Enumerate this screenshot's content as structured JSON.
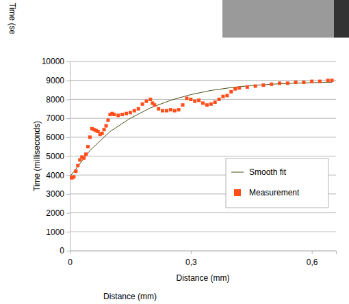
{
  "chart_data": {
    "type": "line",
    "x_label": "Distance (mm)",
    "y_label": "Time (milliseconds)",
    "xlim": [
      0,
      0.66
    ],
    "xticks": [
      0,
      {
        "value": 0.3,
        "label": "0,3"
      },
      {
        "value": 0.6,
        "label": "0,6"
      }
    ],
    "ylim": [
      0,
      10000
    ],
    "yticks": [
      0,
      1000,
      2000,
      3000,
      4000,
      5000,
      6000,
      7000,
      8000,
      9000,
      10000
    ],
    "grid": true,
    "legend": "right",
    "annotations": [
      {
        "text": "Time (se"
      },
      {
        "text": "Distance (mm)"
      }
    ],
    "series": [
      {
        "name": "Smooth fit",
        "type": "line",
        "color": "#4a4a14",
        "line_style": "solid",
        "x": [
          0,
          0.05,
          0.1,
          0.15,
          0.2,
          0.25,
          0.3,
          0.35,
          0.4,
          0.45,
          0.5,
          0.55,
          0.6,
          0.65
        ],
        "values": [
          3900,
          5300,
          6300,
          7000,
          7550,
          7950,
          8250,
          8470,
          8620,
          8730,
          8800,
          8850,
          8880,
          8900
        ]
      },
      {
        "name": "Measurement",
        "type": "scatter",
        "color": "#ff4d1a",
        "marker": "square",
        "x": [
          0,
          0.005,
          0.01,
          0.015,
          0.02,
          0.025,
          0.03,
          0.035,
          0.04,
          0.045,
          0.05,
          0.055,
          0.06,
          0.065,
          0.07,
          0.075,
          0.08,
          0.085,
          0.09,
          0.095,
          0.1,
          0.105,
          0.11,
          0.12,
          0.13,
          0.14,
          0.15,
          0.16,
          0.17,
          0.18,
          0.19,
          0.2,
          0.205,
          0.21,
          0.22,
          0.23,
          0.24,
          0.25,
          0.26,
          0.27,
          0.28,
          0.29,
          0.3,
          0.31,
          0.32,
          0.33,
          0.34,
          0.35,
          0.36,
          0.37,
          0.38,
          0.39,
          0.4,
          0.41,
          0.42,
          0.44,
          0.46,
          0.48,
          0.5,
          0.52,
          0.54,
          0.56,
          0.58,
          0.6,
          0.62,
          0.64,
          0.65
        ],
        "values": [
          3900,
          3850,
          3900,
          4200,
          4500,
          4800,
          4950,
          4900,
          5100,
          5500,
          6000,
          6450,
          6400,
          6350,
          6300,
          6150,
          6200,
          6400,
          6600,
          6900,
          7200,
          7250,
          7200,
          7150,
          7200,
          7250,
          7300,
          7400,
          7500,
          7750,
          7900,
          8000,
          7800,
          7700,
          7500,
          7400,
          7400,
          7450,
          7400,
          7450,
          7700,
          8050,
          8000,
          7900,
          7950,
          7800,
          7700,
          7750,
          7850,
          8000,
          8150,
          8200,
          8400,
          8550,
          8600,
          8650,
          8700,
          8750,
          8800,
          8850,
          8850,
          8900,
          8900,
          8950,
          8950,
          9000,
          9000
        ]
      }
    ]
  }
}
